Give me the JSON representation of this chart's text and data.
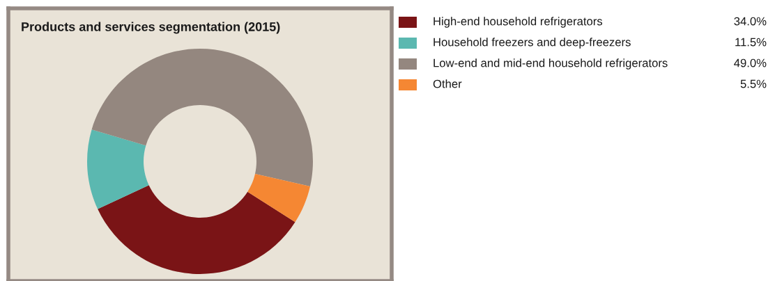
{
  "chart_data": {
    "type": "donut",
    "title": "Products and services segmentation (2015)",
    "categories": [
      "High-end household refrigerators",
      "Household freezers and deep-freezers",
      "Low-end and mid-end household refrigerators",
      "Other"
    ],
    "values": [
      34.0,
      11.5,
      49.0,
      5.5
    ],
    "colors": [
      "#7a1416",
      "#5bb8b0",
      "#94877f",
      "#f58733"
    ],
    "value_labels": [
      "34.0%",
      "11.5%",
      "49.0%",
      "5.5%"
    ],
    "legend": "right"
  }
}
